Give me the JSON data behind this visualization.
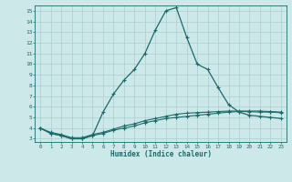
{
  "xlabel": "Humidex (Indice chaleur)",
  "xlim": [
    -0.5,
    23.5
  ],
  "ylim": [
    2.7,
    15.5
  ],
  "xticks": [
    0,
    1,
    2,
    3,
    4,
    5,
    6,
    7,
    8,
    9,
    10,
    11,
    12,
    13,
    14,
    15,
    16,
    17,
    18,
    19,
    20,
    21,
    22,
    23
  ],
  "yticks": [
    3,
    4,
    5,
    6,
    7,
    8,
    9,
    10,
    11,
    12,
    13,
    14,
    15
  ],
  "bg_color": "#cce8e8",
  "grid_color": "#aacfcf",
  "line_color": "#1a6b6b",
  "line1_x": [
    0,
    1,
    2,
    3,
    4,
    5,
    6,
    7,
    8,
    9,
    10,
    11,
    12,
    13,
    14,
    15,
    16,
    17,
    18,
    19,
    20,
    21,
    22,
    23
  ],
  "line1_y": [
    4.0,
    3.5,
    3.3,
    3.0,
    3.0,
    3.3,
    5.5,
    7.2,
    8.5,
    9.5,
    11.0,
    13.2,
    15.0,
    15.3,
    12.5,
    10.0,
    9.5,
    7.8,
    6.2,
    5.5,
    5.2,
    5.1,
    5.0,
    4.9
  ],
  "line2_x": [
    0,
    1,
    2,
    3,
    4,
    5,
    6,
    7,
    8,
    9,
    10,
    11,
    12,
    13,
    14,
    15,
    16,
    17,
    18,
    19,
    20,
    21,
    22,
    23
  ],
  "line2_y": [
    4.0,
    3.5,
    3.3,
    3.0,
    3.0,
    3.3,
    3.5,
    3.8,
    4.0,
    4.2,
    4.5,
    4.7,
    4.9,
    5.0,
    5.1,
    5.2,
    5.3,
    5.4,
    5.5,
    5.55,
    5.55,
    5.5,
    5.5,
    5.45
  ],
  "line3_x": [
    0,
    1,
    2,
    3,
    4,
    5,
    6,
    7,
    8,
    9,
    10,
    11,
    12,
    13,
    14,
    15,
    16,
    17,
    18,
    19,
    20,
    21,
    22,
    23
  ],
  "line3_y": [
    4.0,
    3.6,
    3.4,
    3.1,
    3.1,
    3.4,
    3.6,
    3.9,
    4.2,
    4.4,
    4.7,
    4.9,
    5.1,
    5.3,
    5.4,
    5.45,
    5.5,
    5.55,
    5.6,
    5.6,
    5.6,
    5.6,
    5.55,
    5.5
  ]
}
